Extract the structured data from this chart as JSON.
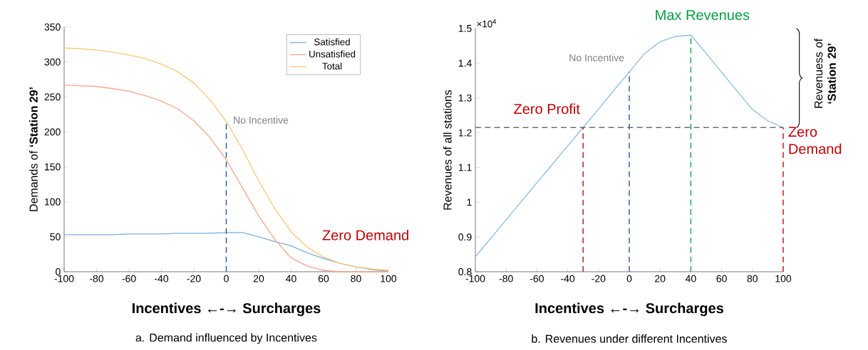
{
  "chart_data": [
    {
      "type": "line",
      "title": "a. Demand influenced by Incentives",
      "xlabel": "Incentives ←-→ Surcharges",
      "ylabel": "Demands of **‘Station 29’**",
      "x": [
        -100,
        -90,
        -80,
        -70,
        -60,
        -50,
        -40,
        -30,
        -20,
        -10,
        0,
        10,
        20,
        30,
        40,
        50,
        60,
        70,
        80,
        90,
        100
      ],
      "series": [
        {
          "name": "Satisfied",
          "color": "#7ab0e0",
          "values": [
            53,
            53,
            53,
            53,
            54,
            54,
            54,
            55,
            55,
            55,
            56,
            56,
            50,
            43,
            37,
            27,
            19,
            12,
            7,
            3,
            1
          ]
        },
        {
          "name": "Unsatisfied",
          "color": "#f5a88c",
          "values": [
            267,
            266,
            265,
            262,
            258,
            252,
            244,
            233,
            216,
            192,
            160,
            120,
            80,
            46,
            20,
            8,
            2,
            0,
            0,
            0,
            0
          ]
        },
        {
          "name": "Total",
          "color": "#fcc878",
          "values": [
            320,
            319,
            317,
            314,
            310,
            305,
            297,
            286,
            270,
            246,
            215,
            175,
            130,
            90,
            57,
            35,
            21,
            12,
            7,
            4,
            2
          ]
        }
      ],
      "xlim": [
        -100,
        100
      ],
      "ylim": [
        0,
        350
      ],
      "xticks": [
        -100,
        -80,
        -60,
        -40,
        -20,
        0,
        20,
        40,
        60,
        80,
        100
      ],
      "yticks": [
        0,
        50,
        100,
        150,
        200,
        250,
        300,
        350
      ],
      "legend": "top right",
      "grid": false,
      "line_style": "solid",
      "ref_lines": [
        {
          "axis": "x",
          "value": 0,
          "label": "No Incentive",
          "color": "#1f4e9c",
          "line_style": "dashed"
        }
      ],
      "annotations": [
        "Zero Demand"
      ]
    },
    {
      "type": "line",
      "title": "b. Revenues under different Incentives",
      "xlabel": "Incentives ←-→ Surcharges",
      "ylabel": "Revenues of all stations",
      "x": [
        -100,
        -90,
        -80,
        -70,
        -60,
        -50,
        -40,
        -30,
        -20,
        -10,
        0,
        10,
        20,
        30,
        40,
        50,
        60,
        70,
        80,
        90,
        100
      ],
      "series": [
        {
          "color": "#8dbde6",
          "values": [
            0.843,
            0.896,
            0.949,
            1.003,
            1.056,
            1.109,
            1.162,
            1.215,
            1.268,
            1.322,
            1.375,
            1.428,
            1.462,
            1.477,
            1.481,
            1.428,
            1.374,
            1.32,
            1.267,
            1.234,
            1.215
          ]
        }
      ],
      "xlim": [
        -100,
        100
      ],
      "ylim": [
        0.8,
        1.5
      ],
      "xticks": [
        -100,
        -80,
        -60,
        -40,
        -20,
        0,
        20,
        40,
        60,
        80,
        100
      ],
      "yticks": [
        0.8,
        0.9,
        1,
        1.1,
        1.2,
        1.3,
        1.4,
        1.5
      ],
      "grid": false,
      "line_style": "solid",
      "ref_lines": [
        {
          "axis": "y",
          "value": 1.215,
          "color": "#6e6e6e",
          "line_style": "dashed"
        },
        {
          "axis": "x",
          "value": -30,
          "label": "Zero Profit",
          "color": "#c00000",
          "line_style": "dashed"
        },
        {
          "axis": "x",
          "value": 0,
          "label": "No Incentive",
          "color": "#1f4e9c",
          "line_style": "dashed"
        },
        {
          "axis": "x",
          "value": 40,
          "label": "Max Revenues",
          "color": "#00a040",
          "line_style": "dashed"
        },
        {
          "axis": "x",
          "value": 100,
          "label": "Zero Demand",
          "color": "#c00000",
          "line_style": "dashed"
        }
      ],
      "annotations": [
        "×10$^{4}$",
        "Revenuess of **‘Station 29’**"
      ]
    }
  ]
}
